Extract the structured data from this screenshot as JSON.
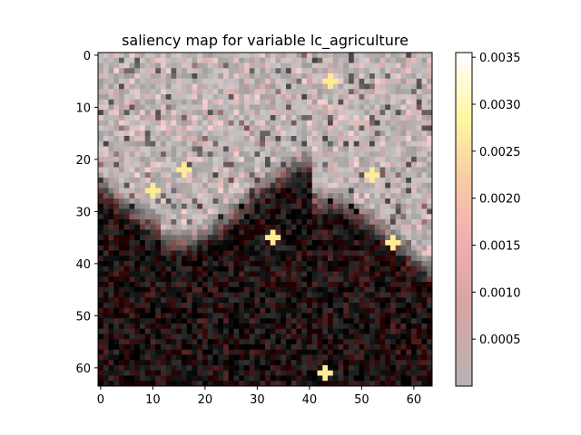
{
  "chart_data": {
    "type": "heatmap",
    "title": "saliency map for variable lc_agriculture",
    "xlabel": "",
    "ylabel": "",
    "grid_size": [
      64,
      64
    ],
    "xlim": [
      -0.5,
      63.5
    ],
    "ylim": [
      63.5,
      -0.5
    ],
    "x_ticks": [
      0,
      10,
      20,
      30,
      40,
      50,
      60
    ],
    "x_tick_labels": [
      "0",
      "10",
      "20",
      "30",
      "40",
      "50",
      "60"
    ],
    "y_ticks": [
      0,
      10,
      20,
      30,
      40,
      50,
      60
    ],
    "y_tick_labels": [
      "0",
      "10",
      "20",
      "30",
      "40",
      "50",
      "60"
    ],
    "colorbar": {
      "vmin": 0.0,
      "vmax": 0.00355,
      "colormap": "hot (semi-transparent overlay on grayscale image)",
      "ticks": [
        0.0005,
        0.001,
        0.0015,
        0.002,
        0.0025,
        0.003,
        0.0035
      ],
      "tick_labels": [
        "0.0005",
        "0.0010",
        "0.0015",
        "0.0020",
        "0.0025",
        "0.0030",
        "0.0035"
      ]
    },
    "description_of_values": {
      "upper_region_rows_0_to_28": "light gray background with scattered pink/red saliency, a few yellow hot spots (~0.0025-0.0035)",
      "lower_region_rows_30_to_63": "mostly dark/black with dark red tones, low saliency",
      "hot_spots": [
        {
          "x": 10,
          "y": 26,
          "value": 0.0032
        },
        {
          "x": 52,
          "y": 23,
          "value": 0.003
        },
        {
          "x": 44,
          "y": 5,
          "value": 0.0028
        },
        {
          "x": 33,
          "y": 35,
          "value": 0.0024
        },
        {
          "x": 56,
          "y": 36,
          "value": 0.0022
        },
        {
          "x": 16,
          "y": 22,
          "value": 0.0022
        },
        {
          "x": 43,
          "y": 61,
          "value": 0.002
        }
      ]
    }
  },
  "colors": {
    "axes": "#000000",
    "background": "#ffffff",
    "light_region": "#b8b2b2",
    "dark_region": "#150a0a"
  }
}
